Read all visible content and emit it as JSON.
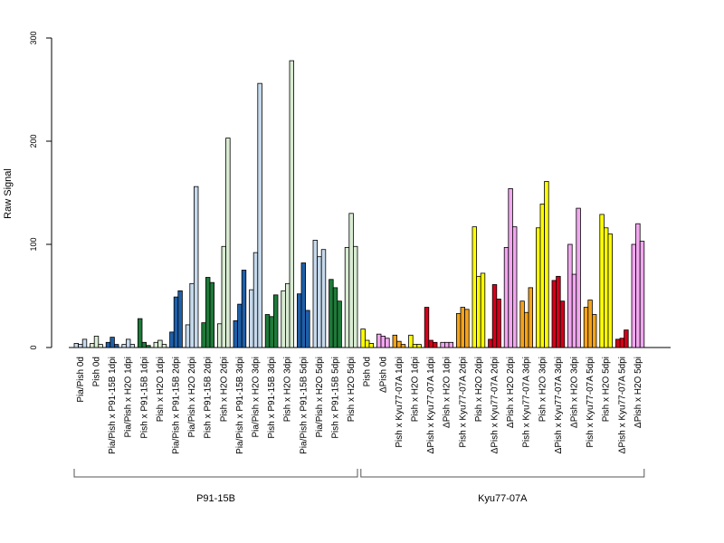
{
  "chart_data": {
    "type": "bar",
    "ylabel": "Raw Signal",
    "ylim": [
      0,
      300
    ],
    "yticks": [
      0,
      100,
      200,
      300
    ],
    "grid": false,
    "groups": [
      {
        "label": "P91-15B",
        "from": 0,
        "to": 17
      },
      {
        "label": "Kyu77-07A",
        "from": 18,
        "to": 35
      }
    ],
    "categories": [
      {
        "label": "Pia/Pish 0d",
        "color": "#c6d9ec",
        "values": [
          4,
          3,
          8
        ]
      },
      {
        "label": "Pish 0d",
        "color": "#d9ecd3",
        "values": [
          4,
          11,
          3
        ]
      },
      {
        "label": "Pia/Pish x P91-15B 1dpi",
        "color": "#1f5fa8",
        "values": [
          5,
          10,
          3
        ]
      },
      {
        "label": "Pia/Pish x H2O 1dpi",
        "color": "#c6d9ec",
        "values": [
          3,
          8,
          3
        ]
      },
      {
        "label": "Pish x P91-15B 1dpi",
        "color": "#1f7a3a",
        "values": [
          28,
          5,
          2
        ]
      },
      {
        "label": "Pish x H2O 1dpi",
        "color": "#d9ecd3",
        "values": [
          5,
          7,
          3
        ]
      },
      {
        "label": "Pia/Pish x P91-15B 2dpi",
        "color": "#1f5fa8",
        "values": [
          15,
          49,
          55
        ]
      },
      {
        "label": "Pia/Pish x H2O 2dpi",
        "color": "#c6d9ec",
        "values": [
          22,
          62,
          156
        ]
      },
      {
        "label": "Pish x P91-15B 2dpi",
        "color": "#1f7a3a",
        "values": [
          24,
          68,
          63
        ]
      },
      {
        "label": "Pish x H2O 2dpi",
        "color": "#d9ecd3",
        "values": [
          23,
          98,
          203
        ]
      },
      {
        "label": "Pia/Pish x P91-15B 3dpi",
        "color": "#1f5fa8",
        "values": [
          26,
          42,
          75
        ]
      },
      {
        "label": "Pia/Pish x H2O 3dpi",
        "color": "#c6d9ec",
        "values": [
          56,
          92,
          256
        ]
      },
      {
        "label": "Pish x P91-15B 3dpi",
        "color": "#1f7a3a",
        "values": [
          32,
          30,
          51
        ]
      },
      {
        "label": "Pish x H2O 3dpi",
        "color": "#d9ecd3",
        "values": [
          55,
          62,
          278
        ]
      },
      {
        "label": "Pia/Pish x P91-15B 5dpi",
        "color": "#1f5fa8",
        "values": [
          52,
          82,
          36
        ]
      },
      {
        "label": "Pia/Pish x H2O 5dpi",
        "color": "#c6d9ec",
        "values": [
          104,
          88,
          95
        ]
      },
      {
        "label": "Pish x P91-15B 5dpi",
        "color": "#1f7a3a",
        "values": [
          66,
          58,
          45
        ]
      },
      {
        "label": "Pish x H2O 5dpi",
        "color": "#d9ecd3",
        "values": [
          97,
          130,
          98
        ]
      },
      {
        "label": "Pish 0d",
        "color": "#ffff00",
        "values": [
          18,
          7,
          4
        ]
      },
      {
        "label": "ΔPish 0d",
        "color": "#f2a6ef",
        "values": [
          13,
          11,
          9
        ]
      },
      {
        "label": "Pish x Kyu77-07A 1dpi",
        "color": "#f5a31a",
        "values": [
          12,
          6,
          3
        ]
      },
      {
        "label": "Pish x H2O 1dpi",
        "color": "#ffff00",
        "values": [
          12,
          3,
          3
        ]
      },
      {
        "label": "ΔPish x Kyu77-07A 1dpi",
        "color": "#d4001a",
        "values": [
          39,
          7,
          5
        ]
      },
      {
        "label": "ΔPish x H2O 1dpi",
        "color": "#f2a6ef",
        "values": [
          5,
          5,
          5
        ]
      },
      {
        "label": "Pish x Kyu77-07A 2dpi",
        "color": "#f5a31a",
        "values": [
          33,
          39,
          37
        ]
      },
      {
        "label": "Pish x H2O 2dpi",
        "color": "#ffff00",
        "values": [
          117,
          69,
          72
        ]
      },
      {
        "label": "ΔPish x Kyu77-07A 2dpi",
        "color": "#d4001a",
        "values": [
          8,
          61,
          47
        ]
      },
      {
        "label": "ΔPish x H2O 2dpi",
        "color": "#f2a6ef",
        "values": [
          97,
          154,
          117
        ]
      },
      {
        "label": "Pish x Kyu77-07A 3dpi",
        "color": "#f5a31a",
        "values": [
          45,
          34,
          58
        ]
      },
      {
        "label": "Pish x H2O 3dpi",
        "color": "#ffff00",
        "values": [
          116,
          139,
          161
        ]
      },
      {
        "label": "ΔPish x Kyu77-07A 3dpi",
        "color": "#d4001a",
        "values": [
          65,
          69,
          45
        ]
      },
      {
        "label": "ΔPish x H2O 3dpi",
        "color": "#f2a6ef",
        "values": [
          100,
          71,
          135
        ]
      },
      {
        "label": "Pish x Kyu77-07A 5dpi",
        "color": "#f5a31a",
        "values": [
          39,
          46,
          32
        ]
      },
      {
        "label": "Pish x H2O 5dpi",
        "color": "#ffff00",
        "values": [
          129,
          116,
          110
        ]
      },
      {
        "label": "ΔPish x Kyu77-07A 5dpi",
        "color": "#d4001a",
        "values": [
          8,
          9,
          17
        ]
      },
      {
        "label": "ΔPish x H2O 5dpi",
        "color": "#f2a6ef",
        "values": [
          100,
          120,
          103
        ]
      }
    ]
  }
}
